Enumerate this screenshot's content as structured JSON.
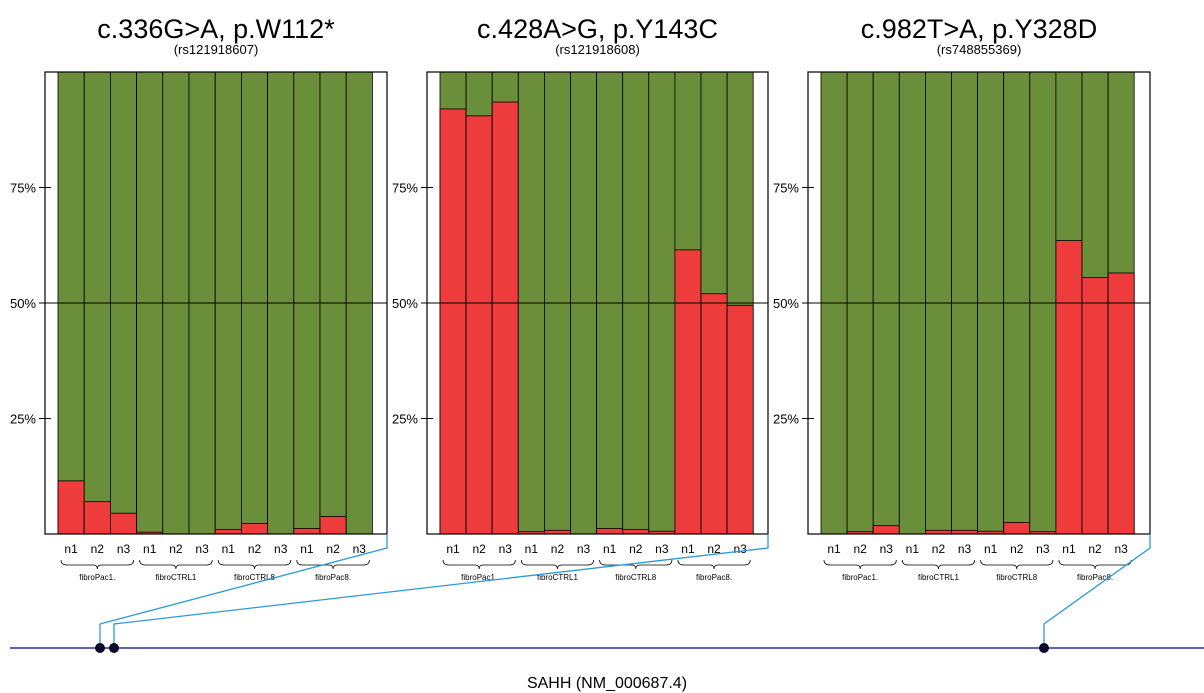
{
  "gene_label": "SAHH (NM_000687.4)",
  "colors": {
    "alt": "#ee3b3b",
    "ref": "#6b8e3a",
    "connector": "#2b9bd6",
    "gene_line": "#2b2b9c",
    "marker": "#0a0a2a"
  },
  "chart_data": [
    {
      "type": "bar",
      "stacked": true,
      "title": "c.336G>A, p.W112*",
      "subtitle": "(rs121918607)",
      "categories": [
        "n1",
        "n2",
        "n3",
        "n1",
        "n2",
        "n3",
        "n1",
        "n2",
        "n3",
        "n1",
        "n2",
        "n3"
      ],
      "groups": [
        {
          "label": "fibroPac1.",
          "members": 3
        },
        {
          "label": "fibroCTRL1",
          "members": 3
        },
        {
          "label": "fibroCTRL8",
          "members": 3
        },
        {
          "label": "fibroPac8.",
          "members": 3
        }
      ],
      "series": [
        {
          "values": [
            11.5,
            7,
            4.5,
            0.4,
            0,
            0,
            1,
            2.3,
            0,
            1.2,
            3.8,
            0
          ]
        },
        {
          "values": [
            88.5,
            93,
            95.5,
            99.6,
            100,
            100,
            99,
            97.7,
            100,
            98.8,
            96.2,
            100
          ]
        }
      ],
      "yticks": [
        "25%",
        "50%",
        "75%"
      ],
      "ylim": [
        0,
        100
      ],
      "hline": 50
    },
    {
      "type": "bar",
      "stacked": true,
      "title": "c.428A>G, p.Y143C",
      "subtitle": "(rs121918608)",
      "categories": [
        "n1",
        "n2",
        "n3",
        "n1",
        "n2",
        "n3",
        "n1",
        "n2",
        "n3",
        "n1",
        "n2",
        "n3"
      ],
      "groups": [
        {
          "label": "fibroPac1.",
          "members": 3
        },
        {
          "label": "fibroCTRL1",
          "members": 3
        },
        {
          "label": "fibroCTRL8",
          "members": 3
        },
        {
          "label": "fibroPac8.",
          "members": 3
        }
      ],
      "series": [
        {
          "values": [
            92,
            90.5,
            93.5,
            0.5,
            0.8,
            0,
            1.2,
            1,
            0.6,
            61.5,
            52,
            49.5
          ]
        },
        {
          "values": [
            8,
            9.5,
            6.5,
            99.5,
            99.2,
            100,
            98.8,
            99,
            99.4,
            38.5,
            48,
            50.5
          ]
        }
      ],
      "yticks": [
        "25%",
        "50%",
        "75%"
      ],
      "ylim": [
        0,
        100
      ],
      "hline": 50
    },
    {
      "type": "bar",
      "stacked": true,
      "title": "c.982T>A, p.Y328D",
      "subtitle": "(rs748855369)",
      "categories": [
        "n1",
        "n2",
        "n3",
        "n1",
        "n2",
        "n3",
        "n1",
        "n2",
        "n3",
        "n1",
        "n2",
        "n3"
      ],
      "groups": [
        {
          "label": "fibroPac1.",
          "members": 3
        },
        {
          "label": "fibroCTRL1",
          "members": 3
        },
        {
          "label": "fibroCTRL8",
          "members": 3
        },
        {
          "label": "fibroPac8.",
          "members": 3
        }
      ],
      "series": [
        {
          "values": [
            0,
            0.5,
            1.8,
            0,
            0.8,
            0.8,
            0.6,
            2.5,
            0.5,
            63.5,
            55.5,
            56.5
          ]
        },
        {
          "values": [
            100,
            99.5,
            98.2,
            100,
            99.2,
            99.2,
            99.4,
            97.5,
            99.5,
            36.5,
            44.5,
            43.5
          ]
        }
      ],
      "yticks": [
        "25%",
        "50%",
        "75%"
      ],
      "ylim": [
        0,
        100
      ],
      "hline": 50
    }
  ]
}
